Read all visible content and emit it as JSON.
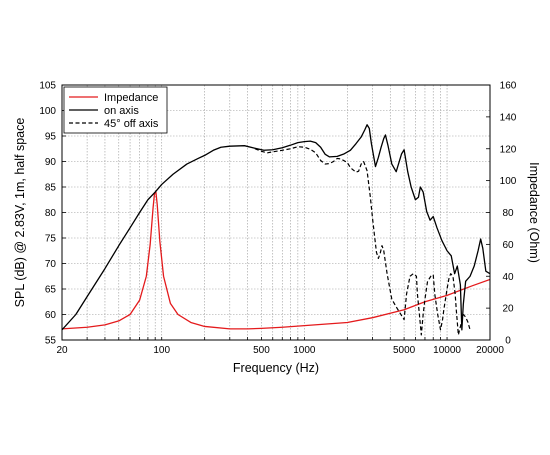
{
  "chart_data": {
    "type": "line",
    "title": "",
    "xlabel": "Frequency (Hz)",
    "ylabel": "SPL (dB) @ 2.83V, 1m, half space",
    "y2label": "Impedance (Ohm)",
    "x_scale": "log",
    "xlim": [
      20,
      20000
    ],
    "ylim": [
      55,
      105
    ],
    "y2lim": [
      0,
      160
    ],
    "grid": true,
    "legend_position": "top-left",
    "x_tick_labels": [
      "20",
      "100",
      "500",
      "1000",
      "5000",
      "10000",
      "20000"
    ],
    "x_tick_values": [
      20,
      100,
      500,
      1000,
      5000,
      10000,
      20000
    ],
    "y_tick_values": [
      55,
      60,
      65,
      70,
      75,
      80,
      85,
      90,
      95,
      100,
      105
    ],
    "y2_tick_values": [
      0,
      20,
      40,
      60,
      80,
      100,
      120,
      140,
      160
    ],
    "series": [
      {
        "name": "Impedance",
        "axis": "right",
        "color": "#e41a1c",
        "style": "solid",
        "points": [
          [
            20,
            7
          ],
          [
            30,
            8
          ],
          [
            40,
            9.5
          ],
          [
            50,
            12
          ],
          [
            60,
            16
          ],
          [
            70,
            25
          ],
          [
            78,
            40
          ],
          [
            83,
            60
          ],
          [
            87,
            83
          ],
          [
            89,
            92
          ],
          [
            91,
            93
          ],
          [
            93,
            85
          ],
          [
            97,
            62
          ],
          [
            103,
            40
          ],
          [
            115,
            23
          ],
          [
            130,
            16
          ],
          [
            160,
            11
          ],
          [
            200,
            8.5
          ],
          [
            300,
            7
          ],
          [
            400,
            7
          ],
          [
            500,
            7.3
          ],
          [
            700,
            8
          ],
          [
            1000,
            9
          ],
          [
            2000,
            11
          ],
          [
            3000,
            14
          ],
          [
            5000,
            19
          ],
          [
            7000,
            24
          ],
          [
            10000,
            28
          ],
          [
            15000,
            34
          ],
          [
            20000,
            38
          ]
        ]
      },
      {
        "name": "on axis",
        "axis": "left",
        "color": "#000000",
        "style": "solid",
        "points": [
          [
            20,
            57
          ],
          [
            25,
            60
          ],
          [
            30,
            63.5
          ],
          [
            40,
            69
          ],
          [
            50,
            73.5
          ],
          [
            60,
            77
          ],
          [
            70,
            80
          ],
          [
            80,
            82.5
          ],
          [
            90,
            84
          ],
          [
            100,
            85.5
          ],
          [
            120,
            87.5
          ],
          [
            150,
            89.5
          ],
          [
            180,
            90.6
          ],
          [
            200,
            91.2
          ],
          [
            230,
            92.2
          ],
          [
            260,
            92.8
          ],
          [
            300,
            93
          ],
          [
            380,
            93.1
          ],
          [
            450,
            92.6
          ],
          [
            520,
            92.2
          ],
          [
            600,
            92.3
          ],
          [
            700,
            92.7
          ],
          [
            800,
            93.2
          ],
          [
            900,
            93.7
          ],
          [
            1000,
            93.9
          ],
          [
            1100,
            94
          ],
          [
            1200,
            93.7
          ],
          [
            1300,
            92.8
          ],
          [
            1400,
            91.4
          ],
          [
            1500,
            90.9
          ],
          [
            1700,
            91
          ],
          [
            1900,
            91.5
          ],
          [
            2100,
            92.2
          ],
          [
            2300,
            93.5
          ],
          [
            2500,
            94.8
          ],
          [
            2650,
            96.2
          ],
          [
            2750,
            97.2
          ],
          [
            2850,
            96.5
          ],
          [
            2950,
            93.5
          ],
          [
            3150,
            89
          ],
          [
            3300,
            90.8
          ],
          [
            3450,
            92.8
          ],
          [
            3600,
            94.5
          ],
          [
            3700,
            95.2
          ],
          [
            3850,
            93.2
          ],
          [
            4100,
            89.5
          ],
          [
            4400,
            88
          ],
          [
            4800,
            91.5
          ],
          [
            5000,
            92.3
          ],
          [
            5300,
            88
          ],
          [
            5600,
            85
          ],
          [
            6000,
            82.5
          ],
          [
            6300,
            83
          ],
          [
            6500,
            85
          ],
          [
            6800,
            84
          ],
          [
            7200,
            80.2
          ],
          [
            7600,
            78.5
          ],
          [
            8000,
            79.2
          ],
          [
            8500,
            77
          ],
          [
            9200,
            74.5
          ],
          [
            10000,
            72.5
          ],
          [
            10700,
            71.5
          ],
          [
            11300,
            68
          ],
          [
            11800,
            69.5
          ],
          [
            12400,
            65.8
          ],
          [
            12700,
            57
          ],
          [
            13000,
            62
          ],
          [
            13500,
            66.5
          ],
          [
            14500,
            67.5
          ],
          [
            15500,
            69.5
          ],
          [
            16500,
            72.5
          ],
          [
            17200,
            74.8
          ],
          [
            17800,
            73
          ],
          [
            18700,
            68.5
          ],
          [
            20000,
            68
          ]
        ]
      },
      {
        "name": "45° off axis",
        "axis": "left",
        "color": "#000000",
        "style": "dashed",
        "points": [
          [
            450,
            92.5
          ],
          [
            500,
            92
          ],
          [
            550,
            91.7
          ],
          [
            600,
            91.9
          ],
          [
            700,
            92.2
          ],
          [
            800,
            92.5
          ],
          [
            900,
            92.9
          ],
          [
            1000,
            92.8
          ],
          [
            1100,
            92.4
          ],
          [
            1200,
            91.7
          ],
          [
            1300,
            90.2
          ],
          [
            1400,
            89.5
          ],
          [
            1500,
            89.6
          ],
          [
            1600,
            90
          ],
          [
            1700,
            90.6
          ],
          [
            1800,
            90.5
          ],
          [
            2000,
            89.8
          ],
          [
            2100,
            88.8
          ],
          [
            2300,
            87.9
          ],
          [
            2400,
            88.1
          ],
          [
            2500,
            89.5
          ],
          [
            2600,
            90
          ],
          [
            2750,
            88.2
          ],
          [
            2900,
            83
          ],
          [
            3000,
            79
          ],
          [
            3100,
            75.5
          ],
          [
            3200,
            72.2
          ],
          [
            3300,
            71
          ],
          [
            3400,
            72
          ],
          [
            3500,
            73.5
          ],
          [
            3600,
            72.5
          ],
          [
            3800,
            68
          ],
          [
            4100,
            63
          ],
          [
            4400,
            61.5
          ],
          [
            4700,
            60.2
          ],
          [
            5000,
            59
          ],
          [
            5200,
            64
          ],
          [
            5500,
            67.5
          ],
          [
            5800,
            68
          ],
          [
            6100,
            67.5
          ],
          [
            6200,
            64
          ],
          [
            6400,
            60
          ],
          [
            6600,
            56
          ],
          [
            6800,
            60
          ],
          [
            7000,
            63
          ],
          [
            7300,
            66.5
          ],
          [
            7700,
            67.5
          ],
          [
            8000,
            67.8
          ],
          [
            8200,
            64
          ],
          [
            8600,
            60
          ],
          [
            9000,
            57
          ],
          [
            9300,
            59
          ],
          [
            9500,
            61
          ],
          [
            10000,
            65
          ],
          [
            10300,
            67
          ],
          [
            10600,
            68
          ],
          [
            11000,
            67.5
          ],
          [
            11400,
            64
          ],
          [
            11600,
            61
          ],
          [
            12000,
            56
          ],
          [
            12500,
            58
          ],
          [
            13000,
            60
          ],
          [
            13500,
            59.5
          ],
          [
            14000,
            58.5
          ],
          [
            14500,
            57
          ]
        ]
      }
    ]
  }
}
